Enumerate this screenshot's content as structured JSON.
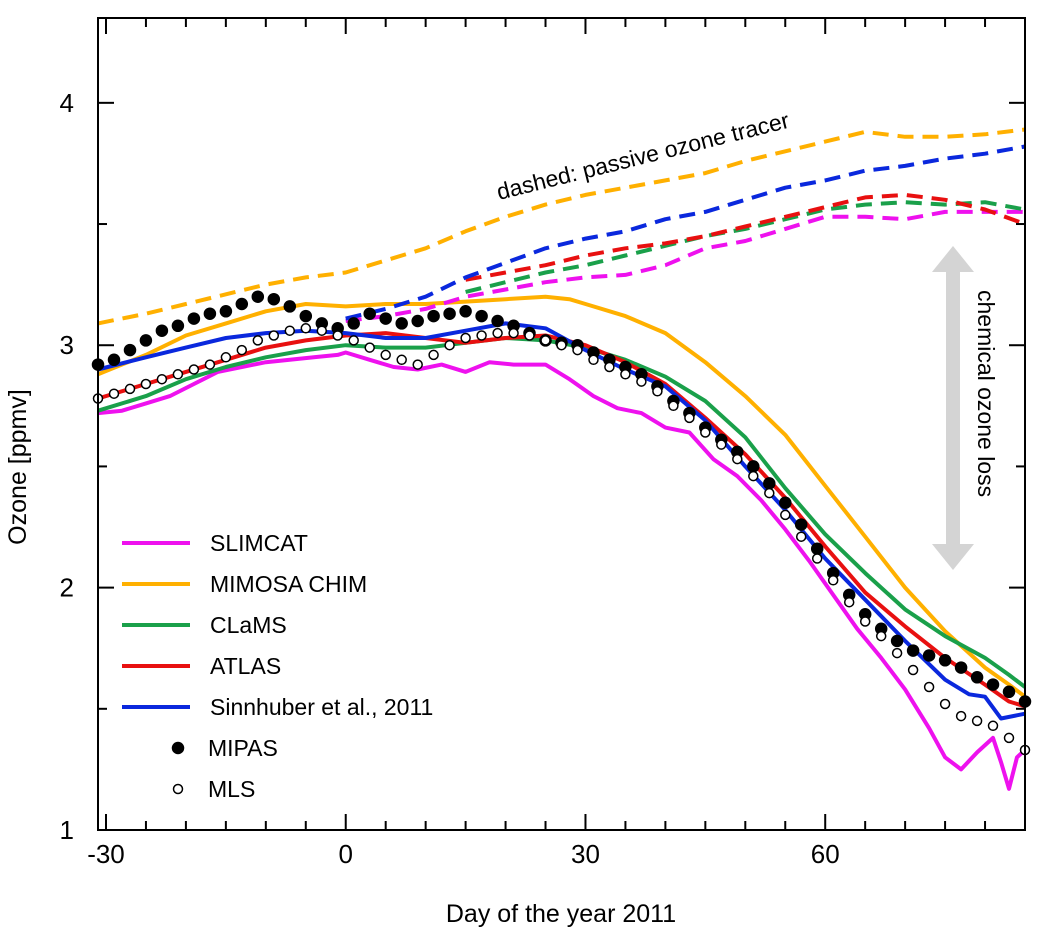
{
  "chart_data": {
    "type": "line",
    "xlabel": "Day of the year 2011",
    "ylabel": "Ozone [ppmv]",
    "xlim": [
      -31,
      85
    ],
    "ylim": [
      1,
      4.35
    ],
    "xticks": [
      -30,
      0,
      30,
      60
    ],
    "xtick_labels": [
      "-30",
      "0",
      "30",
      "60"
    ],
    "yticks": [
      1,
      2,
      3,
      4
    ],
    "ytick_labels": [
      "1",
      "2",
      "3",
      "4"
    ],
    "grid": false,
    "legend_position": "lower-left",
    "annotations": {
      "dashed_note": "dashed: passive ozone tracer",
      "loss_note": "chemical ozone loss"
    },
    "series": [
      {
        "name": "SLIMCAT",
        "style": "solid",
        "color": "#ee11ee",
        "x": [
          -31,
          -28,
          -25,
          -22,
          -19,
          -16,
          -13,
          -10,
          -7,
          -4,
          -1,
          0,
          3,
          6,
          9,
          12,
          15,
          18,
          21,
          25,
          28,
          31,
          34,
          37,
          40,
          43,
          46,
          49,
          52,
          55,
          58,
          61,
          64,
          67,
          70,
          73,
          75,
          77,
          79,
          81,
          82,
          83,
          84,
          85
        ],
        "y": [
          2.72,
          2.73,
          2.76,
          2.79,
          2.84,
          2.89,
          2.91,
          2.93,
          2.94,
          2.95,
          2.96,
          2.97,
          2.94,
          2.91,
          2.9,
          2.92,
          2.89,
          2.93,
          2.92,
          2.92,
          2.86,
          2.79,
          2.74,
          2.72,
          2.66,
          2.64,
          2.53,
          2.46,
          2.36,
          2.24,
          2.11,
          1.97,
          1.83,
          1.71,
          1.58,
          1.42,
          1.3,
          1.25,
          1.32,
          1.38,
          1.28,
          1.17,
          1.3,
          1.33
        ]
      },
      {
        "name": "MIMOSA CHIM",
        "style": "solid",
        "color": "#ffb000",
        "x": [
          -31,
          -25,
          -20,
          -15,
          -10,
          -5,
          0,
          5,
          10,
          15,
          20,
          25,
          28,
          30,
          35,
          40,
          45,
          50,
          55,
          60,
          65,
          70,
          75,
          80,
          83,
          85
        ],
        "y": [
          2.88,
          2.96,
          3.04,
          3.09,
          3.14,
          3.17,
          3.16,
          3.17,
          3.17,
          3.18,
          3.19,
          3.2,
          3.19,
          3.17,
          3.12,
          3.05,
          2.93,
          2.79,
          2.63,
          2.42,
          2.21,
          2.0,
          1.82,
          1.67,
          1.6,
          1.55
        ]
      },
      {
        "name": "CLaMS",
        "style": "solid",
        "color": "#1aa04a",
        "x": [
          -31,
          -25,
          -20,
          -15,
          -10,
          -5,
          0,
          5,
          10,
          15,
          20,
          25,
          30,
          35,
          40,
          45,
          50,
          55,
          60,
          65,
          70,
          75,
          80,
          83,
          85
        ],
        "y": [
          2.73,
          2.79,
          2.86,
          2.91,
          2.95,
          2.98,
          3.0,
          2.99,
          2.99,
          3.01,
          3.03,
          3.02,
          2.99,
          2.94,
          2.87,
          2.77,
          2.62,
          2.41,
          2.22,
          2.06,
          1.91,
          1.8,
          1.71,
          1.64,
          1.59
        ]
      },
      {
        "name": "ATLAS",
        "style": "solid",
        "color": "#e81010",
        "x": [
          -31,
          -25,
          -20,
          -15,
          -10,
          -5,
          0,
          5,
          10,
          15,
          20,
          25,
          30,
          35,
          40,
          45,
          50,
          55,
          60,
          65,
          70,
          75,
          80,
          83,
          85
        ],
        "y": [
          2.78,
          2.84,
          2.89,
          2.94,
          2.99,
          3.02,
          3.04,
          3.05,
          3.03,
          3.01,
          3.03,
          3.04,
          3.0,
          2.93,
          2.84,
          2.7,
          2.55,
          2.37,
          2.17,
          1.98,
          1.84,
          1.71,
          1.6,
          1.53,
          1.51
        ]
      },
      {
        "name": "Sinnhuber et al., 2011",
        "style": "solid",
        "color": "#0a28dd",
        "x": [
          -31,
          -25,
          -20,
          -15,
          -10,
          -5,
          0,
          5,
          10,
          15,
          20,
          25,
          30,
          35,
          40,
          45,
          50,
          55,
          60,
          65,
          70,
          75,
          78,
          80,
          82,
          85
        ],
        "y": [
          2.9,
          2.95,
          2.99,
          3.03,
          3.05,
          3.06,
          3.05,
          3.03,
          3.03,
          3.06,
          3.09,
          3.07,
          2.98,
          2.9,
          2.83,
          2.69,
          2.5,
          2.32,
          2.12,
          1.95,
          1.78,
          1.62,
          1.56,
          1.55,
          1.46,
          1.48
        ]
      },
      {
        "name": "SLIMCAT passive",
        "style": "dashed",
        "color": "#ee11ee",
        "x": [
          0,
          5,
          10,
          15,
          20,
          25,
          30,
          35,
          40,
          45,
          50,
          55,
          60,
          65,
          70,
          75,
          80,
          85
        ],
        "y": [
          3.1,
          3.12,
          3.15,
          3.2,
          3.23,
          3.26,
          3.28,
          3.29,
          3.33,
          3.4,
          3.43,
          3.48,
          3.53,
          3.53,
          3.52,
          3.55,
          3.55,
          3.55
        ]
      },
      {
        "name": "MIMOSA CHIM passive",
        "style": "dashed",
        "color": "#ffb000",
        "x": [
          -31,
          -25,
          -20,
          -15,
          -10,
          -5,
          0,
          5,
          10,
          15,
          20,
          25,
          30,
          35,
          40,
          45,
          50,
          55,
          60,
          65,
          70,
          75,
          80,
          85
        ],
        "y": [
          3.09,
          3.13,
          3.17,
          3.21,
          3.25,
          3.28,
          3.3,
          3.35,
          3.4,
          3.47,
          3.53,
          3.58,
          3.62,
          3.65,
          3.68,
          3.71,
          3.76,
          3.8,
          3.84,
          3.88,
          3.86,
          3.86,
          3.87,
          3.89
        ]
      },
      {
        "name": "CLaMS passive",
        "style": "dashed",
        "color": "#1aa04a",
        "x": [
          15,
          20,
          25,
          30,
          35,
          40,
          45,
          50,
          55,
          60,
          65,
          70,
          75,
          80,
          85
        ],
        "y": [
          3.22,
          3.26,
          3.3,
          3.33,
          3.37,
          3.41,
          3.45,
          3.48,
          3.52,
          3.56,
          3.58,
          3.59,
          3.58,
          3.59,
          3.56
        ]
      },
      {
        "name": "ATLAS passive",
        "style": "dashed",
        "color": "#e81010",
        "x": [
          15,
          20,
          25,
          30,
          35,
          40,
          45,
          50,
          55,
          60,
          65,
          70,
          75,
          80,
          85
        ],
        "y": [
          3.27,
          3.3,
          3.33,
          3.37,
          3.4,
          3.42,
          3.45,
          3.49,
          3.53,
          3.57,
          3.61,
          3.62,
          3.6,
          3.56,
          3.5
        ]
      },
      {
        "name": "Sinnhuber passive",
        "style": "dashed",
        "color": "#0a28dd",
        "x": [
          0,
          5,
          10,
          15,
          20,
          25,
          30,
          35,
          40,
          45,
          50,
          55,
          60,
          65,
          70,
          75,
          80,
          85
        ],
        "y": [
          3.11,
          3.15,
          3.2,
          3.28,
          3.34,
          3.4,
          3.44,
          3.47,
          3.52,
          3.55,
          3.6,
          3.65,
          3.68,
          3.72,
          3.74,
          3.77,
          3.79,
          3.82
        ]
      },
      {
        "name": "MIPAS",
        "style": "filled-marker",
        "color": "#000000",
        "x": [
          -31,
          -29,
          -27,
          -25,
          -23,
          -21,
          -19,
          -17,
          -15,
          -13,
          -11,
          -9,
          -7,
          -5,
          -3,
          -1,
          1,
          3,
          5,
          7,
          9,
          11,
          13,
          15,
          17,
          19,
          21,
          23,
          25,
          27,
          29,
          31,
          33,
          35,
          37,
          39,
          41,
          43,
          45,
          47,
          49,
          51,
          53,
          55,
          57,
          59,
          61,
          63,
          65,
          67,
          69,
          71,
          73,
          75,
          77,
          79,
          81,
          83,
          85
        ],
        "y": [
          2.92,
          2.94,
          2.98,
          3.02,
          3.06,
          3.08,
          3.11,
          3.13,
          3.14,
          3.17,
          3.2,
          3.19,
          3.16,
          3.12,
          3.09,
          3.07,
          3.09,
          3.13,
          3.11,
          3.09,
          3.1,
          3.12,
          3.13,
          3.14,
          3.12,
          3.1,
          3.08,
          3.05,
          3.02,
          3.01,
          3.0,
          2.97,
          2.94,
          2.91,
          2.88,
          2.83,
          2.77,
          2.72,
          2.66,
          2.61,
          2.56,
          2.5,
          2.43,
          2.35,
          2.26,
          2.16,
          2.06,
          1.97,
          1.89,
          1.83,
          1.78,
          1.74,
          1.72,
          1.7,
          1.67,
          1.63,
          1.6,
          1.57,
          1.53
        ]
      },
      {
        "name": "MLS",
        "style": "open-marker",
        "color": "#000000",
        "x": [
          -31,
          -29,
          -27,
          -25,
          -23,
          -21,
          -19,
          -17,
          -15,
          -13,
          -11,
          -9,
          -7,
          -5,
          -3,
          -1,
          1,
          3,
          5,
          7,
          9,
          11,
          13,
          15,
          17,
          19,
          21,
          23,
          25,
          27,
          29,
          31,
          33,
          35,
          37,
          39,
          41,
          43,
          45,
          47,
          49,
          51,
          53,
          55,
          57,
          59,
          61,
          63,
          65,
          67,
          69,
          71,
          73,
          75,
          77,
          79,
          81,
          83,
          85
        ],
        "y": [
          2.78,
          2.8,
          2.82,
          2.84,
          2.86,
          2.88,
          2.9,
          2.92,
          2.95,
          2.98,
          3.02,
          3.04,
          3.06,
          3.07,
          3.06,
          3.04,
          3.02,
          2.99,
          2.96,
          2.94,
          2.92,
          2.96,
          3.0,
          3.03,
          3.04,
          3.05,
          3.05,
          3.04,
          3.02,
          3.0,
          2.98,
          2.94,
          2.91,
          2.88,
          2.85,
          2.81,
          2.75,
          2.7,
          2.64,
          2.59,
          2.53,
          2.46,
          2.39,
          2.3,
          2.21,
          2.12,
          2.03,
          1.94,
          1.86,
          1.8,
          1.73,
          1.66,
          1.59,
          1.52,
          1.47,
          1.45,
          1.43,
          1.38,
          1.33
        ]
      }
    ]
  },
  "legend": [
    {
      "label": "SLIMCAT",
      "kind": "line",
      "color": "#ee11ee"
    },
    {
      "label": "MIMOSA CHIM",
      "kind": "line",
      "color": "#ffb000"
    },
    {
      "label": "CLaMS",
      "kind": "line",
      "color": "#1aa04a"
    },
    {
      "label": "ATLAS",
      "kind": "line",
      "color": "#e81010"
    },
    {
      "label": "Sinnhuber et al., 2011",
      "kind": "line",
      "color": "#0a28dd"
    },
    {
      "label": "MIPAS",
      "kind": "filled-marker",
      "color": "#000000"
    },
    {
      "label": "MLS",
      "kind": "open-marker",
      "color": "#000000"
    }
  ]
}
